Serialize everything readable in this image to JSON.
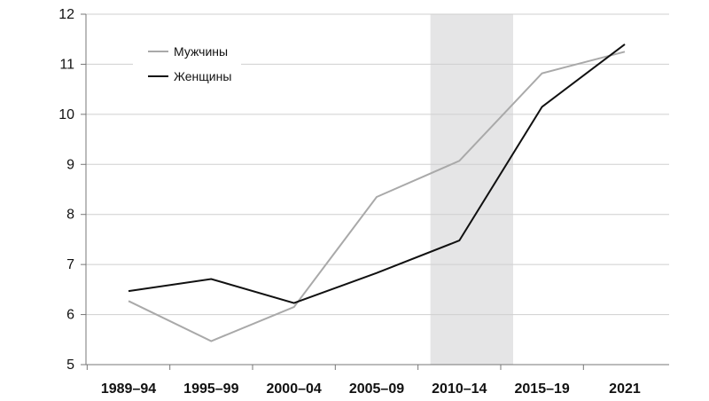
{
  "chart_data": {
    "type": "line",
    "categories": [
      "1989–94",
      "1995–99",
      "2000–04",
      "2005–09",
      "2010–14",
      "2015–19",
      "2021"
    ],
    "ylim": [
      5,
      12
    ],
    "yticks": [
      "5",
      "6",
      "7",
      "8",
      "9",
      "10",
      "11",
      "12"
    ],
    "grid": true,
    "legend_position": "top-left",
    "highlight_band": {
      "from_category": "2010–14",
      "from_offset": -0.35,
      "to_offset": 0.65,
      "color": "#e5e5e6"
    },
    "series": [
      {
        "name": "Мужчины",
        "color": "#a9a9a9",
        "values": [
          6.27,
          5.47,
          6.15,
          8.35,
          9.07,
          10.82,
          11.25
        ]
      },
      {
        "name": "Женщины",
        "color": "#111111",
        "values": [
          6.47,
          6.71,
          6.23,
          6.83,
          7.48,
          10.15,
          11.4
        ]
      }
    ]
  }
}
